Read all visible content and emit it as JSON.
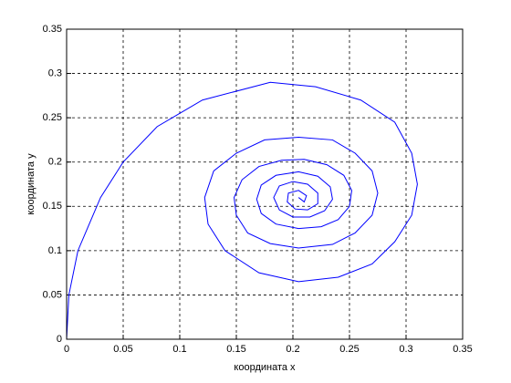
{
  "chart_data": {
    "type": "line",
    "xlabel": "координата x",
    "ylabel": "координата y",
    "xlim": [
      0,
      0.35
    ],
    "ylim": [
      0,
      0.35
    ],
    "xticks": [
      0,
      0.05,
      0.1,
      0.15,
      0.2,
      0.25,
      0.3,
      0.35
    ],
    "yticks": [
      0,
      0.05,
      0.1,
      0.15,
      0.2,
      0.25,
      0.3,
      0.35
    ],
    "grid": true,
    "series": [
      {
        "color": "#0000ff",
        "x": [
          0,
          0.002,
          0.01,
          0.03,
          0.05,
          0.08,
          0.12,
          0.18,
          0.22,
          0.26,
          0.29,
          0.305,
          0.31,
          0.305,
          0.29,
          0.27,
          0.24,
          0.205,
          0.17,
          0.14,
          0.125,
          0.122,
          0.13,
          0.15,
          0.175,
          0.205,
          0.235,
          0.255,
          0.27,
          0.275,
          0.27,
          0.255,
          0.235,
          0.205,
          0.18,
          0.16,
          0.15,
          0.148,
          0.155,
          0.17,
          0.19,
          0.21,
          0.23,
          0.245,
          0.252,
          0.25,
          0.24,
          0.225,
          0.205,
          0.185,
          0.172,
          0.168,
          0.172,
          0.185,
          0.205,
          0.222,
          0.233,
          0.235,
          0.228,
          0.215,
          0.2,
          0.188,
          0.183,
          0.188,
          0.2,
          0.213,
          0.222,
          0.222,
          0.213,
          0.202,
          0.195,
          0.196,
          0.205,
          0.212,
          0.21,
          0.205
        ],
        "values": [
          0,
          0.05,
          0.1,
          0.16,
          0.2,
          0.24,
          0.27,
          0.29,
          0.285,
          0.27,
          0.245,
          0.21,
          0.175,
          0.14,
          0.11,
          0.085,
          0.07,
          0.065,
          0.075,
          0.1,
          0.13,
          0.16,
          0.19,
          0.21,
          0.225,
          0.228,
          0.225,
          0.21,
          0.19,
          0.165,
          0.14,
          0.12,
          0.107,
          0.103,
          0.108,
          0.12,
          0.14,
          0.16,
          0.18,
          0.195,
          0.202,
          0.203,
          0.197,
          0.185,
          0.168,
          0.15,
          0.135,
          0.127,
          0.125,
          0.13,
          0.142,
          0.158,
          0.174,
          0.185,
          0.189,
          0.184,
          0.172,
          0.158,
          0.145,
          0.138,
          0.138,
          0.146,
          0.16,
          0.173,
          0.178,
          0.175,
          0.165,
          0.153,
          0.146,
          0.147,
          0.155,
          0.165,
          0.168,
          0.162,
          0.155,
          0.16
        ]
      }
    ]
  }
}
